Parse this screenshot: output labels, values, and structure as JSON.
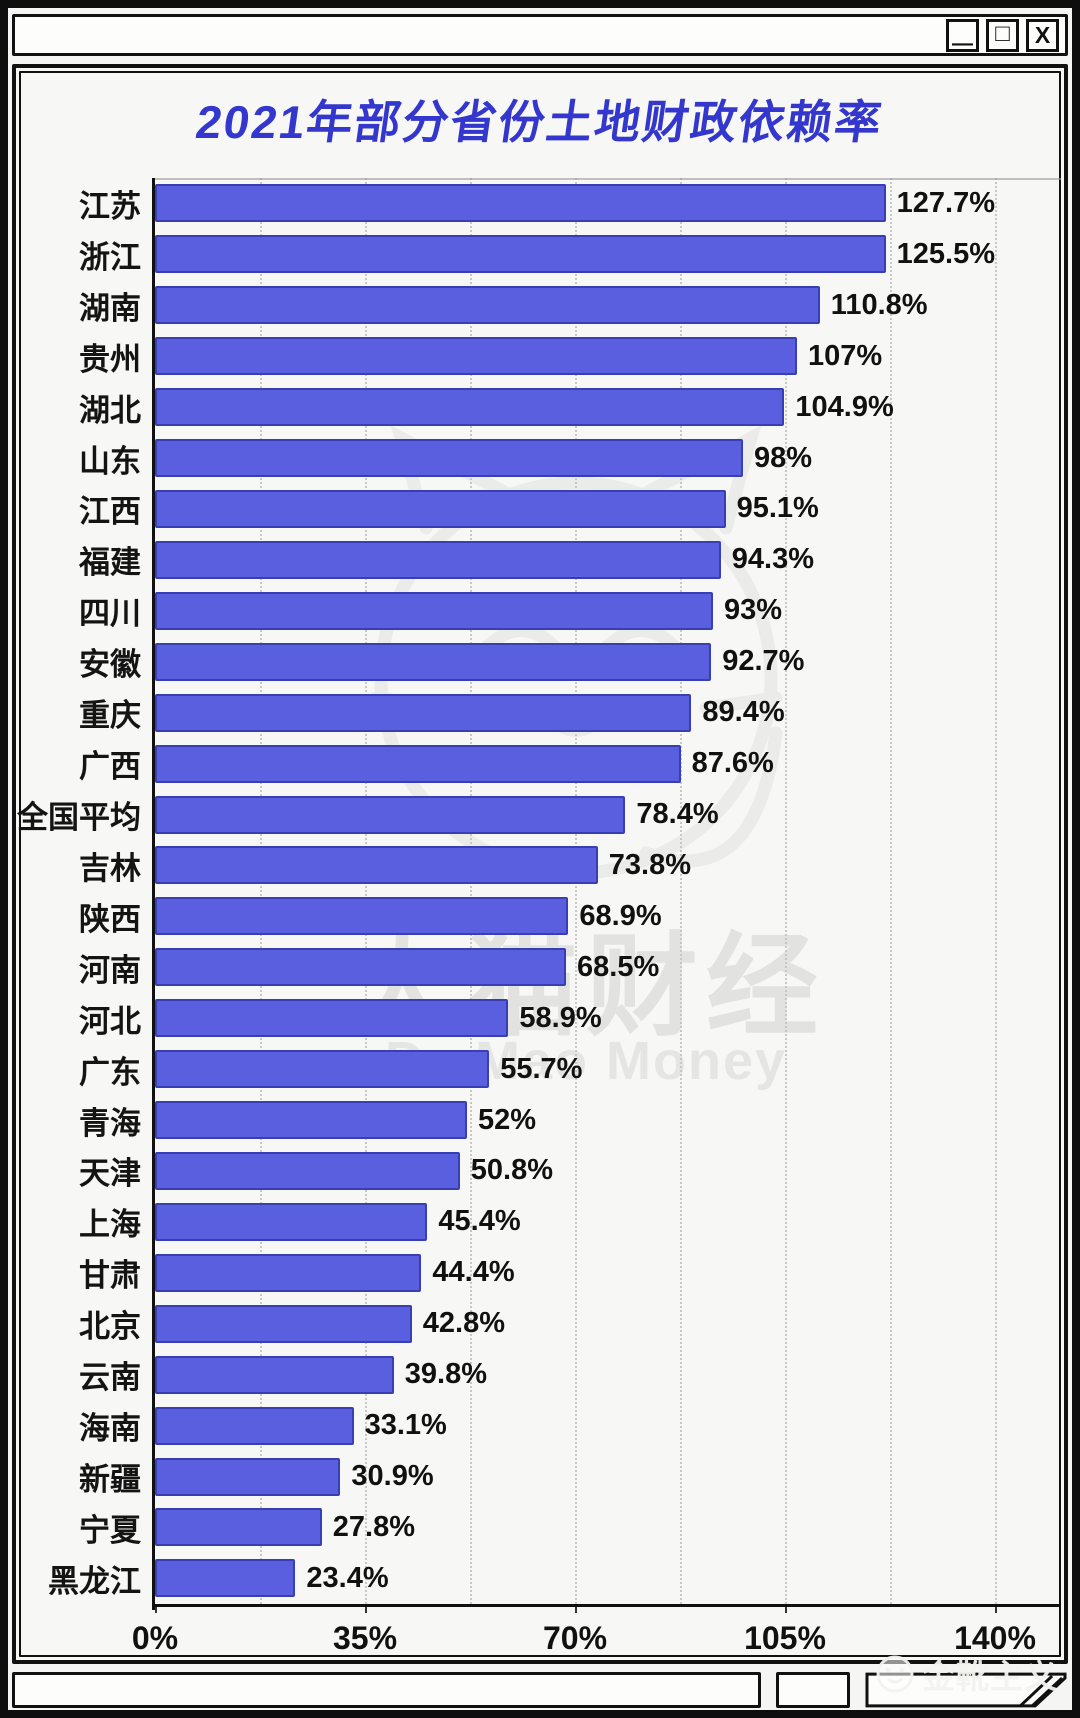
{
  "window": {
    "titlebar": {
      "minimize_label": "—",
      "maximize_label": "□",
      "close_label": "X"
    }
  },
  "chart_data": {
    "type": "bar",
    "orientation": "horizontal",
    "title": "2021年部分省份土地财政依赖率",
    "categories": [
      "江苏",
      "浙江",
      "湖南",
      "贵州",
      "湖北",
      "山东",
      "江西",
      "福建",
      "四川",
      "安徽",
      "重庆",
      "广西",
      "全国平均",
      "吉林",
      "陕西",
      "河南",
      "河北",
      "广东",
      "青海",
      "天津",
      "上海",
      "甘肃",
      "北京",
      "云南",
      "海南",
      "新疆",
      "宁夏",
      "黑龙江"
    ],
    "values": [
      127.7,
      125.5,
      110.8,
      107,
      104.9,
      98,
      95.1,
      94.3,
      93,
      92.7,
      89.4,
      87.6,
      78.4,
      73.8,
      68.9,
      68.5,
      58.9,
      55.7,
      52,
      50.8,
      45.4,
      44.4,
      42.8,
      39.8,
      33.1,
      30.9,
      27.8,
      23.4
    ],
    "value_labels": [
      "127.7%",
      "125.5%",
      "110.8%",
      "107%",
      "104.9%",
      "98%",
      "95.1%",
      "94.3%",
      "93%",
      "92.7%",
      "89.4%",
      "87.6%",
      "78.4%",
      "73.8%",
      "68.9%",
      "68.5%",
      "58.9%",
      "55.7%",
      "52%",
      "50.8%",
      "45.4%",
      "44.4%",
      "42.8%",
      "39.8%",
      "33.1%",
      "30.9%",
      "27.8%",
      "23.4%"
    ],
    "x_ticks": [
      "0%",
      "35%",
      "70%",
      "105%",
      "140%"
    ],
    "x_tick_values": [
      0,
      35,
      70,
      105,
      140
    ],
    "xlim": [
      0,
      140
    ],
    "grid_interval_pct": 17.5,
    "grid": "dotted-vertical",
    "legend": "none",
    "bar_color": "#5a5fdf",
    "bar_border_color": "#383fb2",
    "title_color": "#3437cd"
  },
  "watermarks": {
    "center_line1": "大猫财经",
    "center_line2": "Da Mao Money",
    "bottom_right": "金靴主义"
  }
}
